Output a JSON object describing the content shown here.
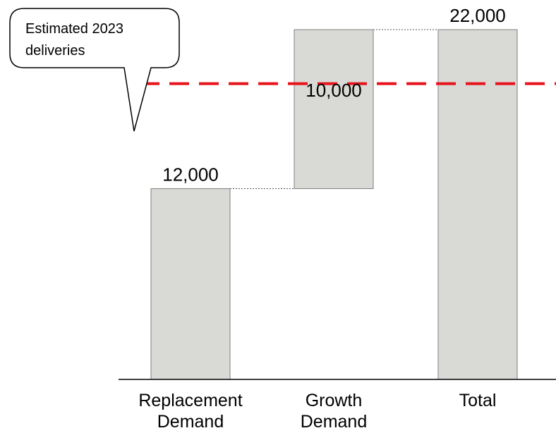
{
  "chart_data": {
    "type": "waterfall",
    "title": "",
    "xlabel": "",
    "ylabel": "",
    "ylim": [
      0,
      22800
    ],
    "grid": false,
    "categories": [
      [
        "Replacement",
        "Demand"
      ],
      [
        "Growth",
        "Demand"
      ],
      [
        "Total"
      ]
    ],
    "values": [
      12000,
      10000,
      22000
    ],
    "value_labels": [
      "12,000",
      "10,000",
      "22,000"
    ],
    "bar_kind": [
      "increase",
      "increase",
      "total"
    ],
    "reference_line": {
      "value": 18600,
      "color": "#e8141c",
      "style": "dashed"
    },
    "annotation": {
      "lines": [
        "Estimated 2023",
        "deliveries"
      ]
    },
    "bar_color": "#d9d9d6",
    "bar_edge_color": "#7f7f7f"
  }
}
